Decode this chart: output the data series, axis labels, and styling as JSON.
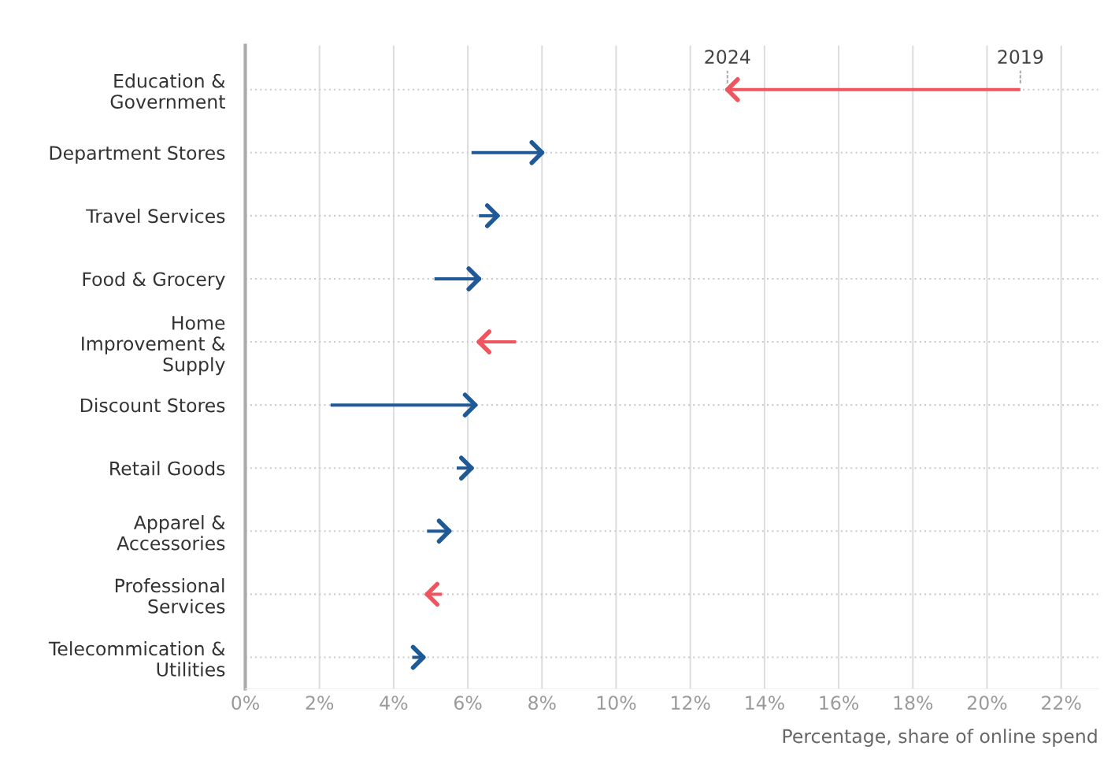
{
  "chart_data": {
    "type": "bar",
    "orientation": "horizontal",
    "xlabel": "Percentage, share of online spend",
    "categories": [
      "Education &\nGovernment",
      "Department Stores",
      "Travel Services",
      "Food & Grocery",
      "Home\nImprovement &\nSupply",
      "Discount Stores",
      "Retail Goods",
      "Apparel &\nAccessories",
      "Professional\nServices",
      "Telecommication &\nUtilities"
    ],
    "base": [
      20.9,
      6.1,
      6.3,
      5.1,
      7.3,
      2.3,
      5.7,
      4.9,
      5.3,
      4.5
    ],
    "values": [
      -7.9,
      1.9,
      0.5,
      1.2,
      -1.0,
      3.9,
      0.4,
      0.6,
      -0.4,
      0.3
    ],
    "colors": [
      "#f0555f",
      "#1f5a96",
      "#1f5a96",
      "#1f5a96",
      "#f0555f",
      "#1f5a96",
      "#1f5a96",
      "#1f5a96",
      "#f0555f",
      "#1f5a96"
    ],
    "xlim": [
      0,
      23
    ],
    "xticks": [
      {
        "value": 0,
        "label": "0%"
      },
      {
        "value": 2,
        "label": "2%"
      },
      {
        "value": 4,
        "label": "4%"
      },
      {
        "value": 6,
        "label": "6%"
      },
      {
        "value": 8,
        "label": "8%"
      },
      {
        "value": 10,
        "label": "10%"
      },
      {
        "value": 12,
        "label": "12%"
      },
      {
        "value": 14,
        "label": "14%"
      },
      {
        "value": 16,
        "label": "16%"
      },
      {
        "value": 18,
        "label": "18%"
      },
      {
        "value": 20,
        "label": "20%"
      },
      {
        "value": 22,
        "label": "22%"
      }
    ],
    "annotations": [
      "2024",
      "2019"
    ],
    "grid": true
  }
}
